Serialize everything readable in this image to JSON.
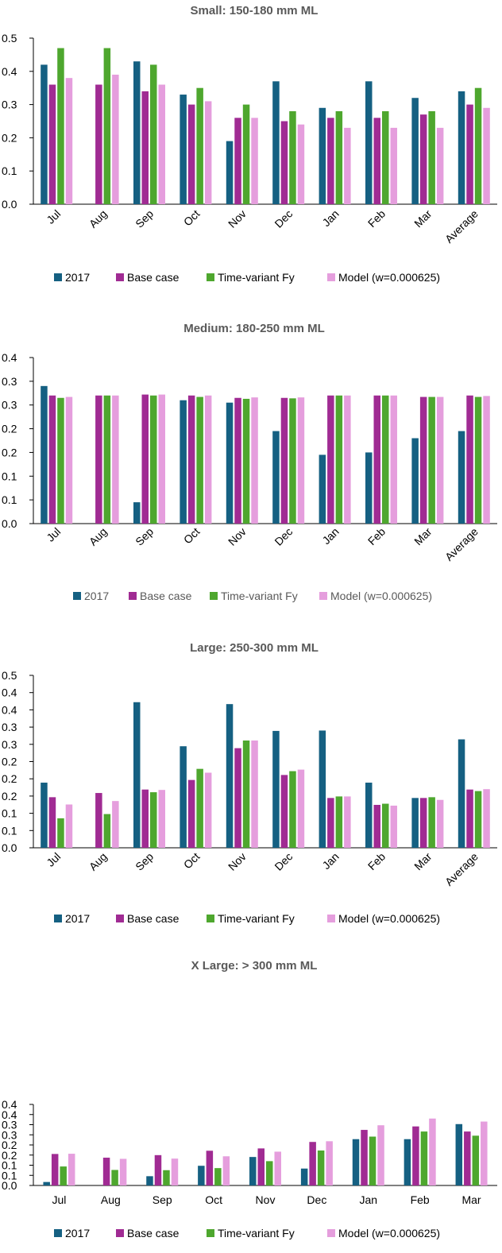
{
  "colors": {
    "2017": "#156082",
    "Base case": "#A02B93",
    "Time-variant Fy": "#4EA72E",
    "Model (w=0.000625)": "#E59EDD"
  },
  "chart_data": [
    {
      "type": "bar",
      "title": "Small: 150-180 mm ML",
      "categories": [
        "Jul",
        "Aug",
        "Sep",
        "Oct",
        "Nov",
        "Dec",
        "Jan",
        "Feb",
        "Mar",
        "Average"
      ],
      "ylim": [
        0,
        0.5
      ],
      "y_ticks": [
        "0.0",
        "0.1",
        "0.2",
        "0.3",
        "0.4",
        "0.5"
      ],
      "x_label_rotation": "diagonal",
      "legend_position": "bottom",
      "series": [
        {
          "name": "2017",
          "values": [
            0.42,
            null,
            0.43,
            0.33,
            0.19,
            0.37,
            0.29,
            0.37,
            0.32,
            0.34
          ]
        },
        {
          "name": "Base case",
          "values": [
            0.36,
            0.36,
            0.34,
            0.3,
            0.26,
            0.25,
            0.26,
            0.26,
            0.27,
            0.3
          ]
        },
        {
          "name": "Time-variant Fy",
          "values": [
            0.47,
            0.47,
            0.42,
            0.35,
            0.3,
            0.28,
            0.28,
            0.28,
            0.28,
            0.35
          ]
        },
        {
          "name": "Model (w=0.000625)",
          "values": [
            0.38,
            0.39,
            0.36,
            0.31,
            0.26,
            0.24,
            0.23,
            0.23,
            0.23,
            0.29
          ]
        }
      ]
    },
    {
      "type": "bar",
      "title": "Medium: 180-250 mm ML",
      "categories": [
        "Jul",
        "Aug",
        "Sep",
        "Oct",
        "Nov",
        "Dec",
        "Jan",
        "Feb",
        "Mar",
        "Average"
      ],
      "ylim": [
        0,
        0.35
      ],
      "y_ticks": [
        "0.0",
        "0.1",
        "0.1",
        "0.2",
        "0.2",
        "0.3",
        "0.3",
        "0.4"
      ],
      "x_label_rotation": "diagonal",
      "legend_position": "bottom",
      "series": [
        {
          "name": "2017",
          "values": [
            0.29,
            null,
            0.045,
            0.26,
            0.255,
            0.195,
            0.145,
            0.15,
            0.18,
            0.195
          ]
        },
        {
          "name": "Base case",
          "values": [
            0.27,
            0.27,
            0.272,
            0.27,
            0.265,
            0.265,
            0.27,
            0.27,
            0.267,
            0.27
          ]
        },
        {
          "name": "Time-variant Fy",
          "values": [
            0.265,
            0.27,
            0.27,
            0.267,
            0.263,
            0.264,
            0.27,
            0.27,
            0.267,
            0.267
          ]
        },
        {
          "name": "Model (w=0.000625)",
          "values": [
            0.267,
            0.27,
            0.272,
            0.27,
            0.266,
            0.266,
            0.27,
            0.27,
            0.267,
            0.269
          ]
        }
      ]
    },
    {
      "type": "bar",
      "title": "Large: 250-300 mm ML",
      "categories": [
        "Jul",
        "Aug",
        "Sep",
        "Oct",
        "Nov",
        "Dec",
        "Jan",
        "Feb",
        "Mar",
        "Average"
      ],
      "ylim": [
        0,
        0.45
      ],
      "y_ticks": [
        "0.0",
        "0.1",
        "0.1",
        "0.2",
        "0.2",
        "0.2",
        "0.3",
        "0.3",
        "0.4",
        "0.4",
        "0.5"
      ],
      "x_label_rotation": "diagonal",
      "legend_position": "bottom",
      "series": [
        {
          "name": "2017",
          "values": [
            0.17,
            null,
            0.38,
            0.265,
            0.375,
            0.305,
            0.306,
            0.17,
            0.13,
            0.283
          ]
        },
        {
          "name": "Base case",
          "values": [
            0.132,
            0.143,
            0.152,
            0.177,
            0.26,
            0.19,
            0.13,
            0.112,
            0.13,
            0.152
          ]
        },
        {
          "name": "Time-variant Fy",
          "values": [
            0.077,
            0.088,
            0.145,
            0.206,
            0.28,
            0.2,
            0.134,
            0.115,
            0.132,
            0.148
          ]
        },
        {
          "name": "Model (w=0.000625)",
          "values": [
            0.113,
            0.122,
            0.151,
            0.196,
            0.28,
            0.204,
            0.134,
            0.11,
            0.125,
            0.153
          ]
        }
      ]
    },
    {
      "type": "bar",
      "title": "X Large: > 300 mm ML",
      "categories": [
        "Jul",
        "Aug",
        "Sep",
        "Oct",
        "Nov",
        "Dec",
        "Jan",
        "Feb",
        "Mar"
      ],
      "ylim": [
        0,
        0.35
      ],
      "y_ticks": [
        "0.0",
        "0.1",
        "0.1",
        "0.2",
        "0.2",
        "0.3",
        "0.3",
        "0.4",
        "0.4"
      ],
      "x_label_rotation": "horizontal",
      "legend_position": "bottom",
      "series": [
        {
          "name": "2017",
          "values": [
            0.015,
            null,
            0.04,
            0.085,
            0.123,
            0.073,
            0.2,
            0.2,
            0.265
          ]
        },
        {
          "name": "Base case",
          "values": [
            0.136,
            0.12,
            0.131,
            0.15,
            0.16,
            0.188,
            0.24,
            0.255,
            0.233
          ]
        },
        {
          "name": "Time-variant Fy",
          "values": [
            0.082,
            0.067,
            0.066,
            0.075,
            0.105,
            0.151,
            0.211,
            0.233,
            0.215
          ]
        },
        {
          "name": "Model (w=0.000625)",
          "values": [
            0.137,
            0.115,
            0.116,
            0.126,
            0.146,
            0.191,
            0.26,
            0.289,
            0.276
          ]
        }
      ]
    }
  ]
}
